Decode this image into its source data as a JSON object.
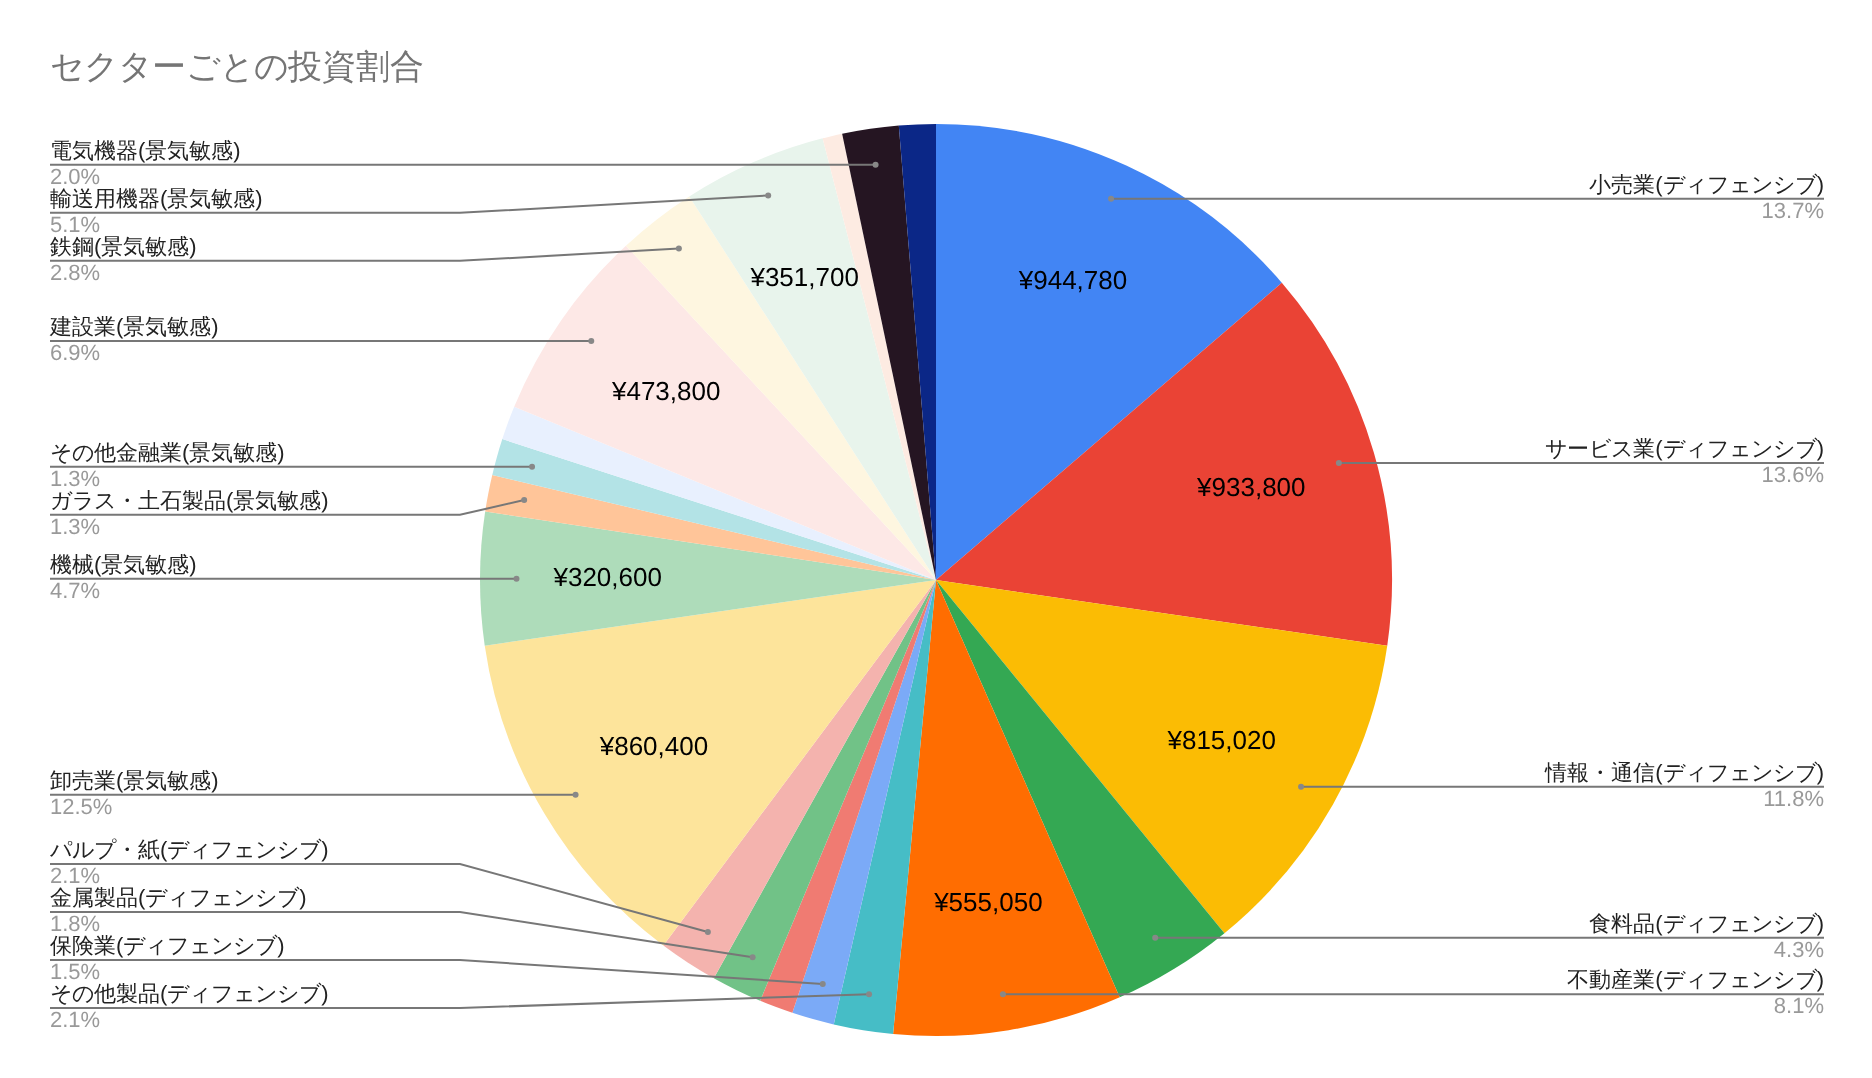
{
  "chart_data": {
    "type": "pie",
    "title": "セクターごとの投資割合",
    "categories": [
      "小売業(ディフェンシブ)",
      "サービス業(ディフェンシブ)",
      "情報・通信(ディフェンシブ)",
      "食料品(ディフェンシブ)",
      "不動産業(ディフェンシブ)",
      "その他製品(ディフェンシブ)",
      "保険業(ディフェンシブ)",
      null,
      "金属製品(ディフェンシブ)",
      "パルプ・紙(ディフェンシブ)",
      "卸売業(景気敏感)",
      "機械(景気敏感)",
      "ガラス・土石製品(景気敏感)",
      "その他金融業(景気敏感)",
      null,
      "建設業(景気敏感)",
      "鉄鋼(景気敏感)",
      "輸送用機器(景気敏感)",
      null,
      "電気機器(景気敏感)",
      null
    ],
    "values": [
      13.7,
      13.6,
      11.8,
      4.3,
      8.1,
      2.1,
      1.5,
      1.2,
      1.8,
      2.1,
      12.5,
      4.7,
      1.3,
      1.3,
      1.2,
      6.9,
      2.8,
      5.1,
      0.7,
      2.0,
      1.3
    ],
    "value_labels": [
      "13.7%",
      "13.6%",
      "11.8%",
      "4.3%",
      "8.1%",
      "2.1%",
      "1.5%",
      null,
      "1.8%",
      "2.1%",
      "12.5%",
      "4.7%",
      "1.3%",
      "1.3%",
      null,
      "6.9%",
      "2.8%",
      "5.1%",
      null,
      "2.0%",
      null
    ],
    "colors": [
      "#4285f4",
      "#ea4335",
      "#fbbc04",
      "#34a853",
      "#ff6d01",
      "#46bdc6",
      "#7baaf7",
      "#f07b72",
      "#71c287",
      "#f4b3ae",
      "#fde49b",
      "#aedcba",
      "#ffc599",
      "#b3e3e6",
      "#e8f0fe",
      "#fde8e6",
      "#fef6e0",
      "#e8f4ec",
      "#fdebe2",
      "#251522",
      "#0b2787"
    ],
    "annotations": [
      {
        "text": "¥944,780",
        "x": "小売業(ディフェンシブ)"
      },
      {
        "text": "¥933,800",
        "x": "サービス業(ディフェンシブ)"
      },
      {
        "text": "¥815,020",
        "x": "情報・通信(ディフェンシブ)"
      },
      {
        "text": "¥555,050",
        "x": "不動産業(ディフェンシブ)"
      },
      {
        "text": "¥860,400",
        "x": "卸売業(景気敏感)"
      },
      {
        "text": "¥320,600",
        "x": "機械(景気敏感)"
      },
      {
        "text": "¥473,800",
        "x": "建設業(景気敏感)"
      },
      {
        "text": "¥351,700",
        "x": "輸送用機器(景気敏感)"
      }
    ],
    "legend": false
  }
}
